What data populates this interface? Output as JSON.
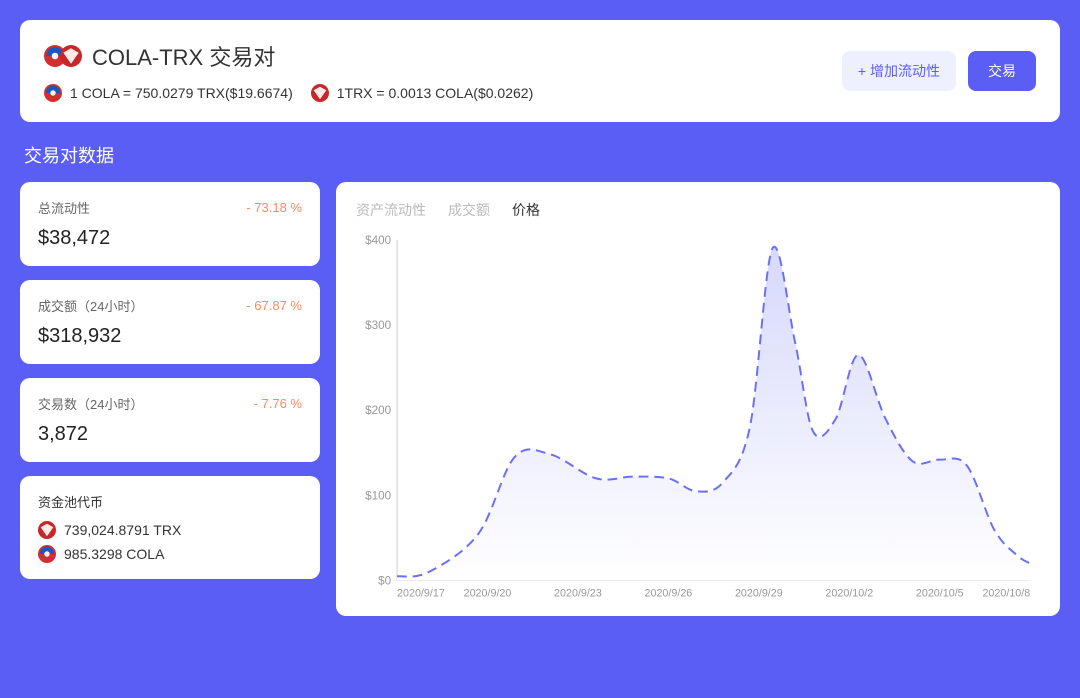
{
  "header": {
    "title": "COLA-TRX 交易对",
    "rate1": "1 COLA = 750.0279 TRX($19.6674)",
    "rate2": "1TRX = 0.0013 COLA($0.0262)",
    "add_liquidity_label": "+ 增加流动性",
    "trade_label": "交易"
  },
  "section_title": "交易对数据",
  "stats": [
    {
      "label": "总流动性",
      "change": "- 73.18 %",
      "value": "$38,472"
    },
    {
      "label": "成交额（24小时）",
      "change": "- 67.87 %",
      "value": "$318,932"
    },
    {
      "label": "交易数（24小时）",
      "change": "- 7.76 %",
      "value": "3,872"
    }
  ],
  "pool": {
    "title": "资金池代币",
    "items": [
      {
        "icon": "trx",
        "text": "739,024.8791 TRX"
      },
      {
        "icon": "cola",
        "text": "985.3298 COLA"
      }
    ]
  },
  "chart": {
    "tabs": [
      {
        "label": "资产流动性",
        "active": false
      },
      {
        "label": "成交额",
        "active": false
      },
      {
        "label": "价格",
        "active": true
      }
    ],
    "type": "area",
    "y_axis": {
      "min": 0,
      "max": 400,
      "ticks": [
        0,
        100,
        200,
        300,
        400
      ],
      "tick_prefix": "$"
    },
    "x_axis": {
      "labels": [
        "2020/9/17",
        "2020/9/20",
        "2020/9/23",
        "2020/9/26",
        "2020/9/29",
        "2020/10/2",
        "2020/10/5",
        "2020/10/8"
      ]
    },
    "series": {
      "color": "#6b6ef7",
      "dash": "10 6",
      "fill_top": "#d6d8fb",
      "fill_bottom": "#ffffff",
      "points": [
        [
          0,
          5
        ],
        [
          0.35,
          10
        ],
        [
          0.9,
          55
        ],
        [
          1.3,
          145
        ],
        [
          1.7,
          148
        ],
        [
          2.2,
          120
        ],
        [
          2.6,
          122
        ],
        [
          3.0,
          120
        ],
        [
          3.3,
          105
        ],
        [
          3.6,
          115
        ],
        [
          3.9,
          180
        ],
        [
          4.15,
          390
        ],
        [
          4.4,
          280
        ],
        [
          4.6,
          175
        ],
        [
          4.85,
          190
        ],
        [
          5.1,
          265
        ],
        [
          5.4,
          190
        ],
        [
          5.7,
          140
        ],
        [
          6.0,
          142
        ],
        [
          6.3,
          135
        ],
        [
          6.6,
          60
        ],
        [
          6.85,
          30
        ],
        [
          7.0,
          20
        ]
      ]
    },
    "colors": {
      "axis": "#cccccc",
      "tick_label": "#999999",
      "background": "#ffffff"
    }
  }
}
